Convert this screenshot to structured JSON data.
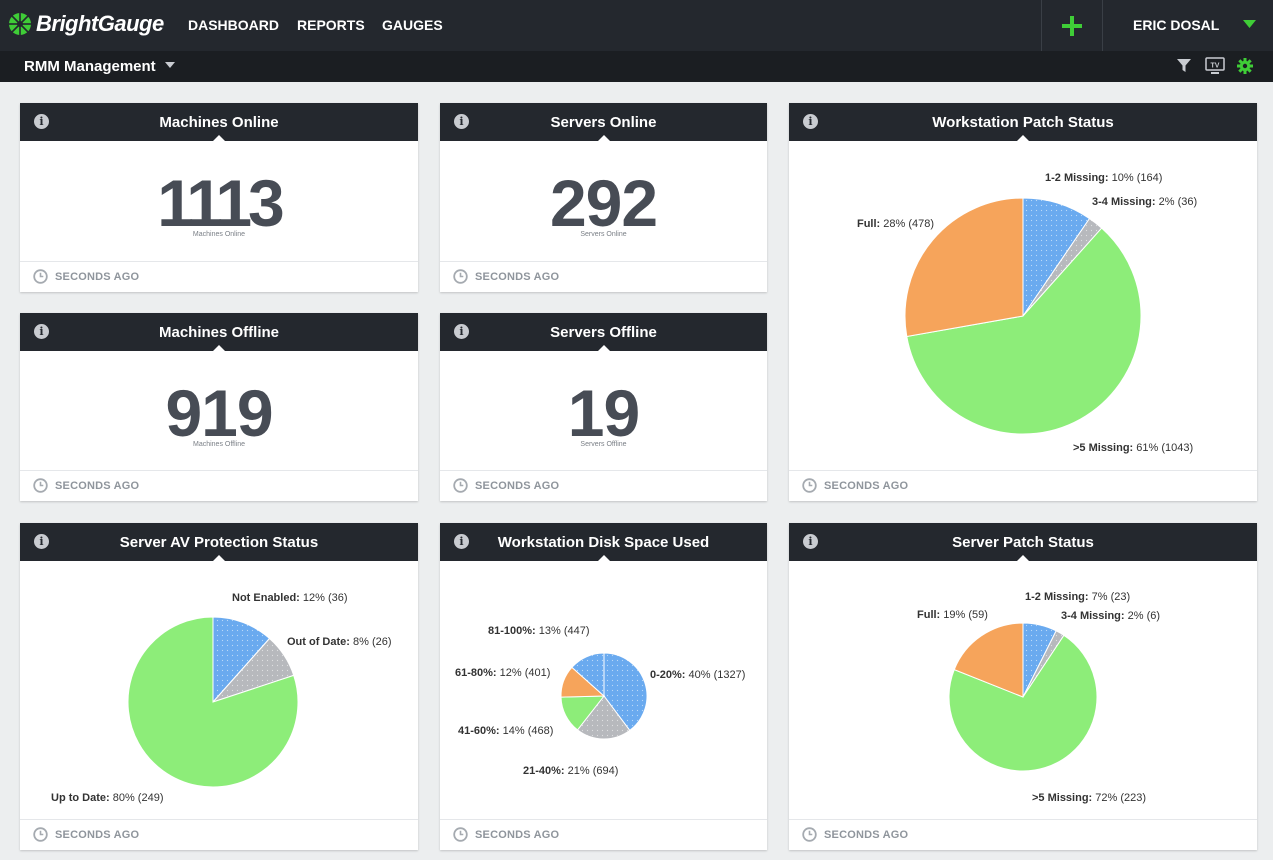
{
  "nav": {
    "logo": "BrightGauge",
    "links": [
      "DASHBOARD",
      "REPORTS",
      "GAUGES"
    ],
    "user": "ERIC DOSAL"
  },
  "subbar": {
    "dashboard": "RMM Management"
  },
  "colors": {
    "blue": "#6aaaef",
    "gray": "#b7b9bd",
    "green": "#8ded79",
    "orange": "#f6a45b",
    "accent": "#3fcd37"
  },
  "footer_text": "SECONDS AGO",
  "cards": {
    "machines_online": {
      "title": "Machines Online",
      "value": "1113",
      "sub": "Machines Online"
    },
    "servers_online": {
      "title": "Servers Online",
      "value": "292",
      "sub": "Servers Online"
    },
    "machines_offline": {
      "title": "Machines Offline",
      "value": "919",
      "sub": "Machines Offline"
    },
    "servers_offline": {
      "title": "Servers Offline",
      "value": "19",
      "sub": "Servers Offline"
    },
    "ws_patch": {
      "title": "Workstation Patch Status"
    },
    "server_av": {
      "title": "Server AV Protection Status"
    },
    "ws_disk": {
      "title": "Workstation Disk Space Used"
    },
    "server_patch": {
      "title": "Server Patch Status"
    }
  },
  "chart_data": [
    {
      "type": "pie",
      "title": "Workstation Patch Status",
      "slices": [
        {
          "label": "1-2 Missing:",
          "value": 164,
          "pct": "10%",
          "color": "#6aaaef"
        },
        {
          "label": "3-4 Missing:",
          "value": 36,
          "pct": "2%",
          "color": "#b7b9bd"
        },
        {
          "label": ">5 Missing:",
          "value": 1043,
          "pct": "61%",
          "color": "#8ded79"
        },
        {
          "label": "Full:",
          "value": 478,
          "pct": "28%",
          "color": "#f6a45b"
        }
      ]
    },
    {
      "type": "pie",
      "title": "Server AV Protection Status",
      "slices": [
        {
          "label": "Not Enabled:",
          "value": 36,
          "pct": "12%",
          "color": "#6aaaef"
        },
        {
          "label": "Out of Date:",
          "value": 26,
          "pct": "8%",
          "color": "#b7b9bd"
        },
        {
          "label": "Up to Date:",
          "value": 249,
          "pct": "80%",
          "color": "#8ded79"
        }
      ]
    },
    {
      "type": "pie",
      "title": "Workstation Disk Space Used",
      "slices": [
        {
          "label": "0-20%:",
          "value": 1327,
          "pct": "40%",
          "color": "#6aaaef"
        },
        {
          "label": "21-40%:",
          "value": 694,
          "pct": "21%",
          "color": "#b7b9bd"
        },
        {
          "label": "41-60%:",
          "value": 468,
          "pct": "14%",
          "color": "#8ded79"
        },
        {
          "label": "61-80%:",
          "value": 401,
          "pct": "12%",
          "color": "#f6a45b"
        },
        {
          "label": "81-100%:",
          "value": 447,
          "pct": "13%",
          "color": "#6aaaef"
        }
      ]
    },
    {
      "type": "pie",
      "title": "Server Patch Status",
      "slices": [
        {
          "label": "1-2 Missing:",
          "value": 23,
          "pct": "7%",
          "color": "#6aaaef"
        },
        {
          "label": "3-4 Missing:",
          "value": 6,
          "pct": "2%",
          "color": "#b7b9bd"
        },
        {
          "label": ">5 Missing:",
          "value": 223,
          "pct": "72%",
          "color": "#8ded79"
        },
        {
          "label": "Full:",
          "value": 59,
          "pct": "19%",
          "color": "#f6a45b"
        }
      ]
    }
  ]
}
